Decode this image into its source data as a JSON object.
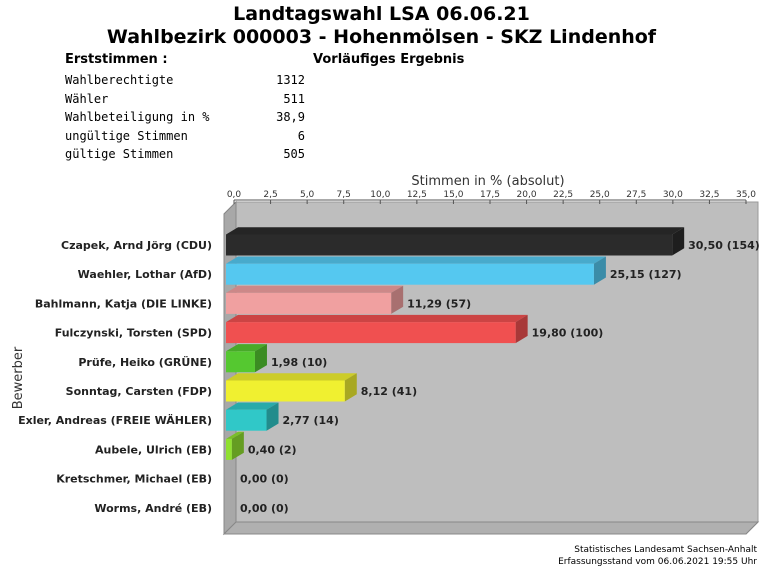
{
  "header": {
    "title_line1": "Landtagswahl LSA 06.06.21",
    "title_line2": "Wahlbezirk 000003 - Hohenmölsen - SKZ Lindenhof",
    "section_label": "Erststimmen  :",
    "status": "Vorläufiges Ergebnis"
  },
  "stats": [
    {
      "label": "Wahlberechtigte",
      "value": "1312"
    },
    {
      "label": "Wähler",
      "value": "511"
    },
    {
      "label": "Wahlbeteiligung in %",
      "value": "38,9"
    },
    {
      "label": "ungültige Stimmen",
      "value": "6"
    },
    {
      "label": "gültige Stimmen",
      "value": "505"
    }
  ],
  "footer": {
    "line1": "Statistisches Landesamt Sachsen-Anhalt",
    "line2": "Erfassungsstand vom 06.06.2021 19:55 Uhr"
  },
  "chart_data": {
    "type": "bar",
    "orientation": "horizontal",
    "xlabel": "Stimmen in % (absolut)",
    "ylabel": "Bewerber",
    "xlim": [
      0,
      35
    ],
    "ticks": [
      "0,0",
      "2,5",
      "5,0",
      "7,5",
      "10,0",
      "12,5",
      "15,0",
      "17,5",
      "20,0",
      "22,5",
      "25,0",
      "27,5",
      "30,0",
      "32,5",
      "35,0"
    ],
    "tick_values": [
      0,
      2.5,
      5,
      7.5,
      10,
      12.5,
      15,
      17.5,
      20,
      22.5,
      25,
      27.5,
      30,
      32.5,
      35
    ],
    "categories": [
      "Czapek, Arnd Jörg (CDU)",
      "Waehler, Lothar (AfD)",
      "Bahlmann, Katja (DIE LINKE)",
      "Fulczynski, Torsten (SPD)",
      "Prüfe, Heiko (GRÜNE)",
      "Sonntag, Carsten (FDP)",
      "Exler, Andreas (FREIE WÄHLER)",
      "Aubele, Ulrich (EB)",
      "Kretschmer, Michael (EB)",
      "Worms, André (EB)"
    ],
    "values": [
      30.5,
      25.15,
      11.29,
      19.8,
      1.98,
      8.12,
      2.77,
      0.4,
      0.0,
      0.0
    ],
    "absolute": [
      154,
      127,
      57,
      100,
      10,
      41,
      14,
      2,
      0,
      0
    ],
    "data_labels": [
      "30,50 (154)",
      "25,15 (127)",
      "11,29 (57)",
      "19,80 (100)",
      "1,98 (10)",
      "8,12 (41)",
      "2,77 (14)",
      "0,40 (2)",
      "0,00 (0)",
      "0,00 (0)"
    ],
    "colors": [
      "#2b2b2b",
      "#55c8f0",
      "#f0a0a0",
      "#f05050",
      "#55c830",
      "#f0f030",
      "#30c8c8",
      "#90e030",
      "#cccccc",
      "#cccccc"
    ],
    "grid": false
  }
}
